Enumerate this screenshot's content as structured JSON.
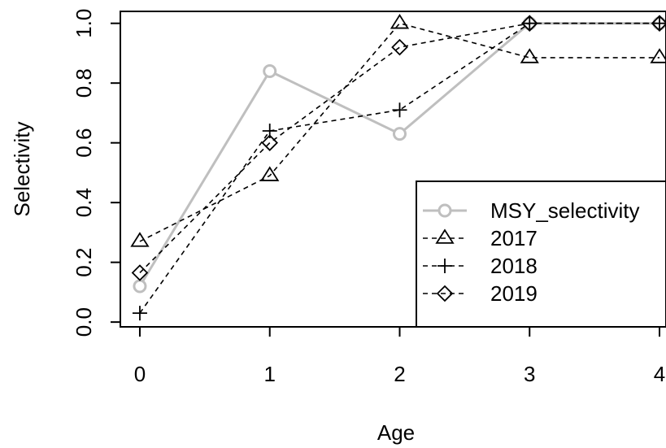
{
  "chart_data": {
    "type": "line",
    "xlabel": "Age",
    "ylabel": "Selectivity",
    "x": [
      0,
      1,
      2,
      3,
      4
    ],
    "x_ticks": [
      "0",
      "1",
      "2",
      "3",
      "4"
    ],
    "y_ticks": [
      "0.0",
      "0.2",
      "0.4",
      "0.6",
      "0.8",
      "1.0"
    ],
    "xlim": [
      -0.15,
      4.05
    ],
    "ylim": [
      -0.016,
      1.04
    ],
    "grid": false,
    "legend_position": "bottom-right",
    "series": [
      {
        "name": "MSY_selectivity",
        "values": [
          0.12,
          0.84,
          0.63,
          1.0,
          1.0
        ],
        "color": "#bfbfbf",
        "line": "solid",
        "marker": "circle"
      },
      {
        "name": "2017",
        "values": [
          0.27,
          0.49,
          1.0,
          0.885,
          0.885
        ],
        "color": "#000000",
        "line": "dashed",
        "marker": "triangle"
      },
      {
        "name": "2018",
        "values": [
          0.03,
          0.64,
          0.71,
          1.0,
          1.0
        ],
        "color": "#000000",
        "line": "dashed",
        "marker": "plus"
      },
      {
        "name": "2019",
        "values": [
          0.165,
          0.6,
          0.92,
          1.0,
          1.0
        ],
        "color": "#000000",
        "line": "dashed",
        "marker": "diamond"
      }
    ]
  }
}
